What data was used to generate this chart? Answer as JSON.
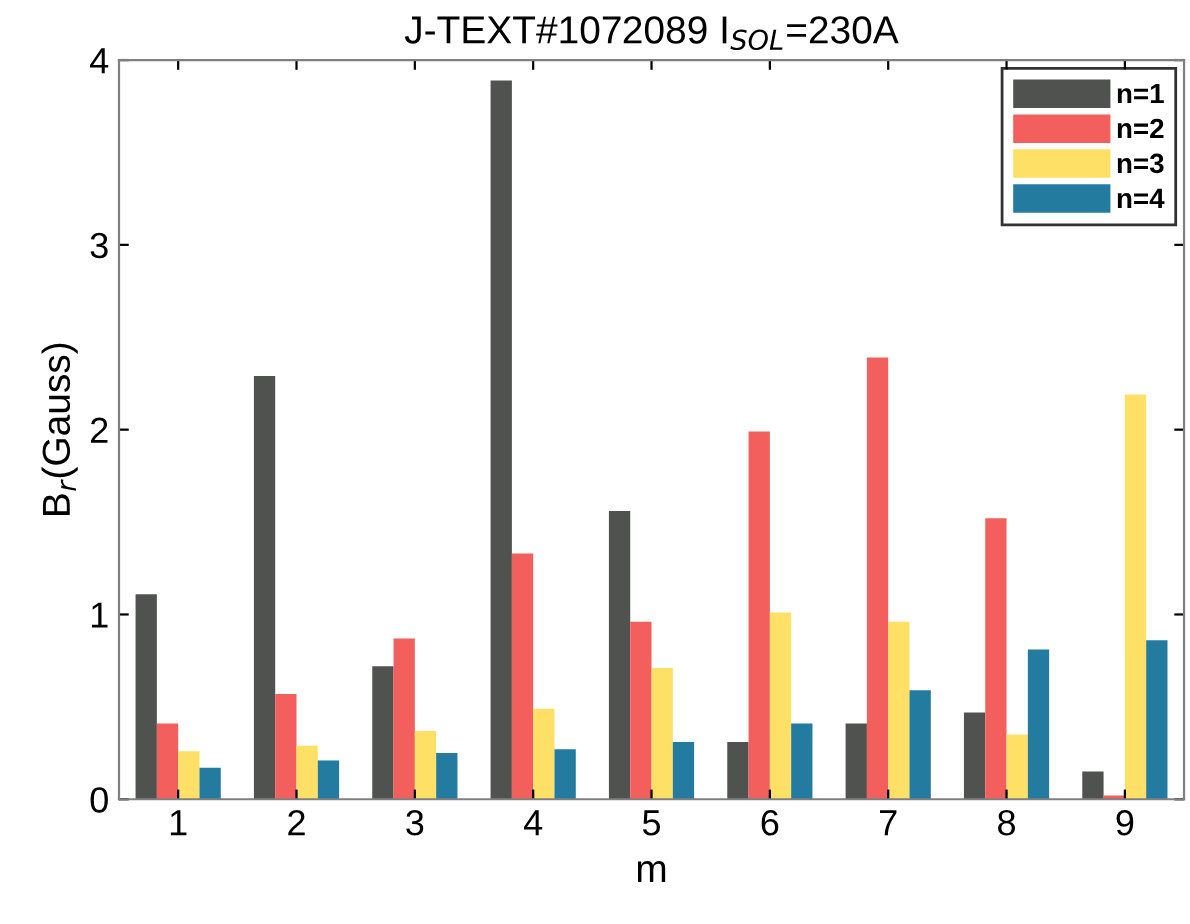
{
  "chart_data": {
    "type": "bar",
    "title": "J-TEXT#1072089 I$_{SOL}$=230A",
    "xlabel": "m",
    "ylabel": "B$_{r}$(Gauss)",
    "categories": [
      "1",
      "2",
      "3",
      "4",
      "5",
      "6",
      "7",
      "8",
      "9"
    ],
    "series": [
      {
        "name": "n=1",
        "color": "#505250",
        "values": [
          1.11,
          2.29,
          0.72,
          3.89,
          1.56,
          0.31,
          0.41,
          0.47,
          0.15
        ]
      },
      {
        "name": "n=2",
        "color": "#f25f5c",
        "values": [
          0.41,
          0.57,
          0.87,
          1.33,
          0.96,
          1.99,
          2.39,
          1.52,
          0.02
        ]
      },
      {
        "name": "n=3",
        "color": "#ffe066",
        "values": [
          0.26,
          0.29,
          0.37,
          0.49,
          0.71,
          1.01,
          0.96,
          0.35,
          2.19
        ]
      },
      {
        "name": "n=4",
        "color": "#247ba0",
        "values": [
          0.17,
          0.21,
          0.25,
          0.27,
          0.31,
          0.41,
          0.59,
          0.81,
          0.86
        ]
      }
    ],
    "ylim": [
      0,
      4
    ],
    "yticks": [
      0,
      1,
      2,
      3,
      4
    ],
    "grid": false,
    "legend": "top right"
  }
}
